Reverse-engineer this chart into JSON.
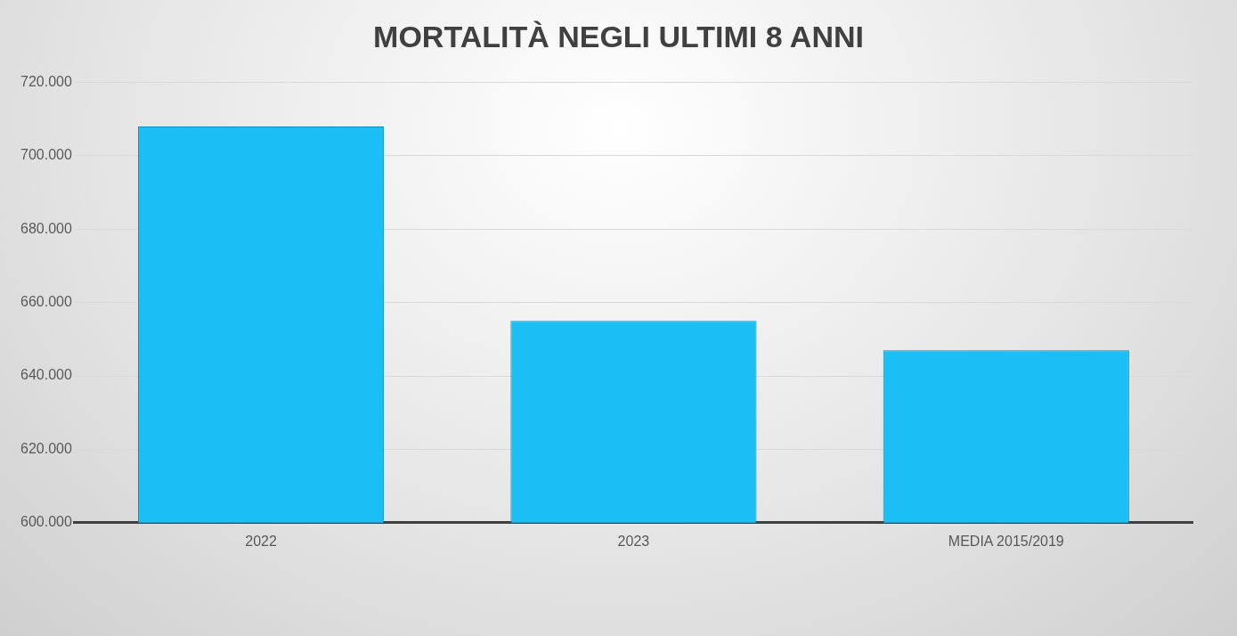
{
  "chart_data": {
    "type": "bar",
    "title": "MORTALITÀ  NEGLI ULTIMI 8 ANNI",
    "categories": [
      "2022",
      "2023",
      "MEDIA 2015/2019"
    ],
    "values": [
      708000,
      655000,
      647000
    ],
    "color": "#1cbff5",
    "ylim": [
      600000,
      720000
    ],
    "yticks": [
      {
        "value": 600000,
        "label": "600.000"
      },
      {
        "value": 620000,
        "label": "620.000"
      },
      {
        "value": 640000,
        "label": "640.000"
      },
      {
        "value": 660000,
        "label": "660.000"
      },
      {
        "value": 680000,
        "label": "680.000"
      },
      {
        "value": 700000,
        "label": "700.000"
      },
      {
        "value": 720000,
        "label": "720.000"
      }
    ],
    "grid": "y"
  }
}
